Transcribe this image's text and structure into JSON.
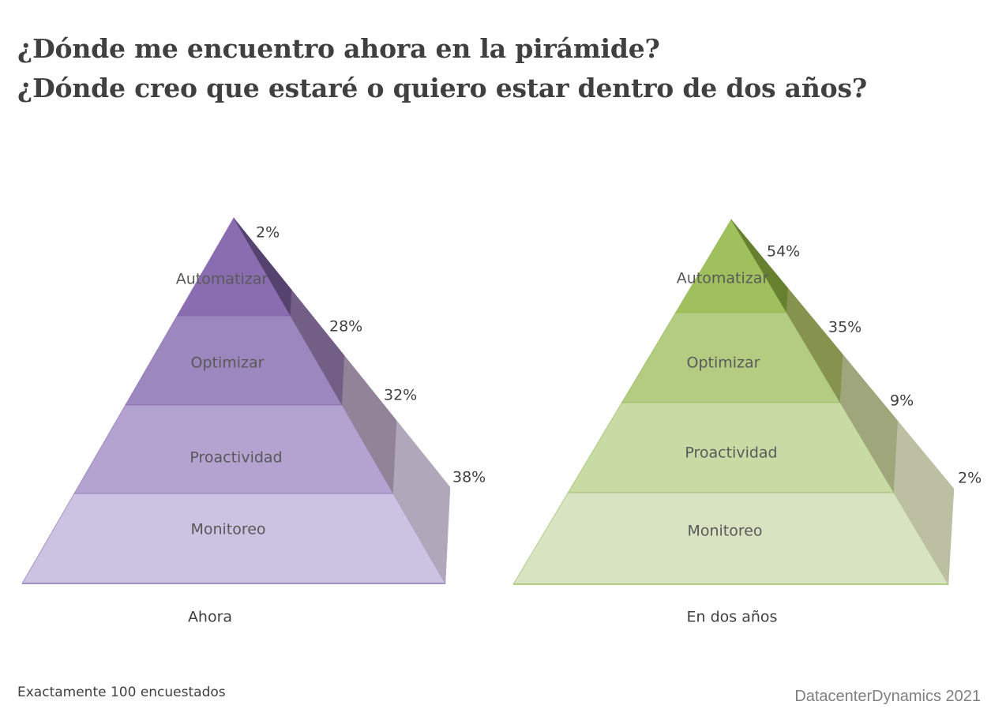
{
  "title_line1": "¿Dónde me encuentro ahora en la pirámide?",
  "title_line2": "¿Dónde creo que estaré o quiero estar dentro de dos años?",
  "footnote": "Exactamente 100 encuestados",
  "source": "DatacenterDynamics 2021",
  "chart_data": [
    {
      "type": "pyramid",
      "caption": "Ahora",
      "levels_top_to_bottom": [
        "Automatizar",
        "Optimizar",
        "Proactividad",
        "Monitoreo"
      ],
      "values_top_to_bottom": [
        "2%",
        "28%",
        "32%",
        "38%"
      ],
      "front_colors": [
        "#8a6db0",
        "#9d87bf",
        "#b4a3d0",
        "#ccc2e1"
      ],
      "side_colors": [
        "#56426f",
        "#735f86",
        "#928399",
        "#b1a7ba"
      ],
      "accent": "#7b5ea7"
    },
    {
      "type": "pyramid",
      "caption": "En dos años",
      "levels_top_to_bottom": [
        "Automatizar",
        "Optimizar",
        "Proactividad",
        "Monitoreo"
      ],
      "values_top_to_bottom": [
        "54%",
        "35%",
        "9%",
        "2%"
      ],
      "front_colors": [
        "#9fc05c",
        "#b4cc82",
        "#c9dba5",
        "#d8e3c2"
      ],
      "side_colors": [
        "#67802f",
        "#85934f",
        "#a0a67b",
        "#bcbfa2"
      ],
      "accent": "#8bb34a"
    }
  ]
}
